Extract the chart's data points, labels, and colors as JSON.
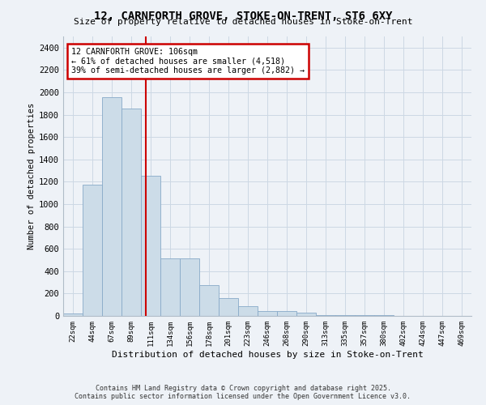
{
  "title": "12, CARNFORTH GROVE, STOKE-ON-TRENT, ST6 6XY",
  "subtitle": "Size of property relative to detached houses in Stoke-on-Trent",
  "xlabel": "Distribution of detached houses by size in Stoke-on-Trent",
  "ylabel": "Number of detached properties",
  "bin_labels": [
    "22sqm",
    "44sqm",
    "67sqm",
    "89sqm",
    "111sqm",
    "134sqm",
    "156sqm",
    "178sqm",
    "201sqm",
    "223sqm",
    "246sqm",
    "268sqm",
    "290sqm",
    "313sqm",
    "335sqm",
    "357sqm",
    "380sqm",
    "402sqm",
    "424sqm",
    "447sqm",
    "469sqm"
  ],
  "bar_heights": [
    25,
    1175,
    1960,
    1855,
    1250,
    515,
    515,
    275,
    160,
    85,
    40,
    40,
    30,
    10,
    5,
    5,
    5,
    2,
    1,
    1,
    1
  ],
  "bar_color": "#ccdce8",
  "bar_edgecolor": "#88aac8",
  "annotation_text_line1": "12 CARNFORTH GROVE: 106sqm",
  "annotation_text_line2": "← 61% of detached houses are smaller (4,518)",
  "annotation_text_line3": "39% of semi-detached houses are larger (2,882) →",
  "annotation_box_facecolor": "#ffffff",
  "annotation_box_edgecolor": "#cc0000",
  "vline_color": "#cc0000",
  "grid_color": "#ccd8e4",
  "background_color": "#eef2f7",
  "ylim": [
    0,
    2500
  ],
  "yticks": [
    0,
    200,
    400,
    600,
    800,
    1000,
    1200,
    1400,
    1600,
    1800,
    2000,
    2200,
    2400
  ],
  "footnote1": "Contains HM Land Registry data © Crown copyright and database right 2025.",
  "footnote2": "Contains public sector information licensed under the Open Government Licence v3.0.",
  "vline_x_index": 3.77
}
